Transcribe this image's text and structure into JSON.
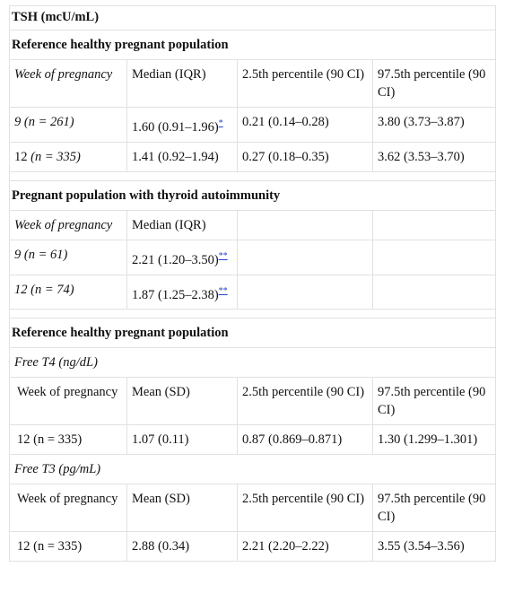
{
  "title": "TSH (mcU/mL)",
  "sections": {
    "ref1": {
      "heading": "Reference healthy pregnant population",
      "header": [
        "Week of pregnancy",
        "Median (IQR)",
        "2.5th percentile (90 CI)",
        "97.5th percentile (90 CI)"
      ],
      "rows": [
        {
          "week": "9 (n = 261)",
          "median": "1.60 (0.91–1.96)",
          "mark": "*",
          "p25": "0.21 (0.14–0.28)",
          "p975": "3.80 (3.73–3.87)"
        },
        {
          "week_num": "12",
          "week_n": "(n = 335)",
          "median": "1.41 (0.92–1.94)",
          "p25": "0.27 (0.18–0.35)",
          "p975": "3.62 (3.53–3.70)"
        }
      ]
    },
    "autoimm": {
      "heading": "Pregnant population with thyroid autoimmunity",
      "header": [
        "Week of pregnancy",
        "Median (IQR)"
      ],
      "rows": [
        {
          "week": "9 (n = 61)",
          "median": "2.21 (1.20–3.50)",
          "mark": "**"
        },
        {
          "week": "12 (n = 74)",
          "median": "1.87 (1.25–2.38)",
          "mark": "**"
        }
      ]
    },
    "ref2": {
      "heading": "Reference healthy pregnant population",
      "t4": {
        "subheading": "Free T4 (ng/dL)",
        "header": [
          "Week of pregnancy",
          "Mean (SD)",
          "2.5th percentile (90 CI)",
          "97.5th percentile (90 CI)"
        ],
        "row": {
          "week": "12 (n = 335)",
          "mean": "1.07 (0.11)",
          "p25": "0.87 (0.869–0.871)",
          "p975": "1.30 (1.299–1.301)"
        }
      },
      "t3": {
        "subheading": "Free T3 (pg/mL)",
        "header": [
          "Week of pregnancy",
          "Mean (SD)",
          "2.5th percentile (90 CI)",
          "97.5th percentile (90 CI)"
        ],
        "row": {
          "week": "12 (n = 335)",
          "mean": "2.88 (0.34)",
          "p25": "2.21 (2.20–2.22)",
          "p975": "3.55 (3.54–3.56)"
        }
      }
    }
  }
}
